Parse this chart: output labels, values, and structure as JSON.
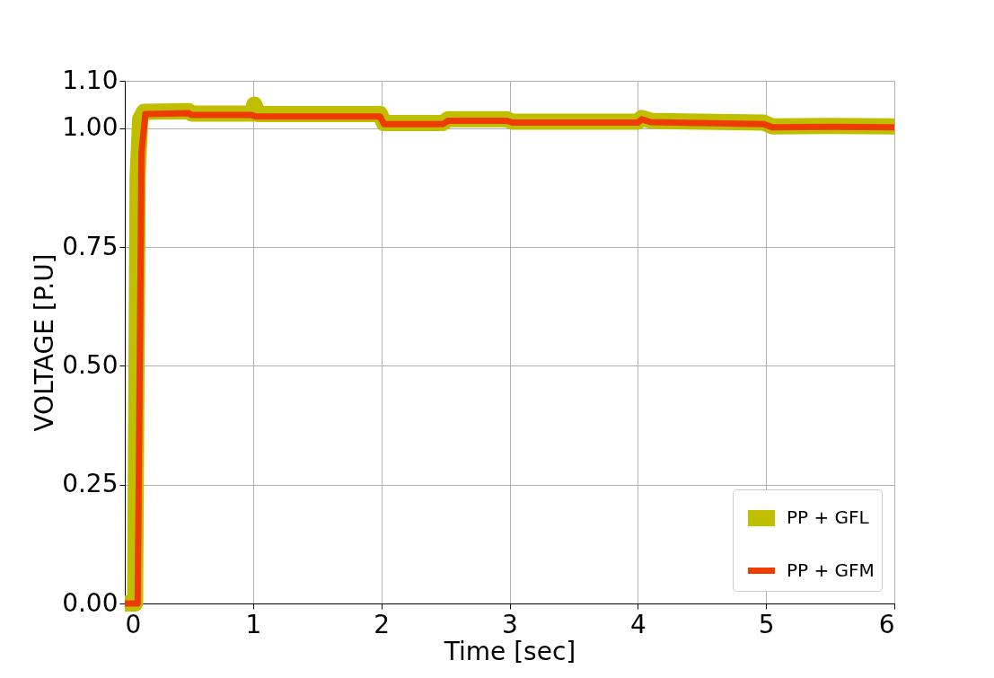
{
  "chart_data": {
    "type": "line",
    "xlabel": "Time [sec]",
    "ylabel": "VOLTAGE [P.U]",
    "xlim": [
      0,
      6
    ],
    "xticks": [
      0,
      1,
      2,
      3,
      4,
      5,
      6
    ],
    "ylim": [
      0,
      1.1
    ],
    "yticks": [
      {
        "value": 0,
        "label": "0.00"
      },
      {
        "value": 0.25,
        "label": "0.25"
      },
      {
        "value": 0.5,
        "label": "0.50"
      },
      {
        "value": 0.75,
        "label": "0.75"
      },
      {
        "value": 1.0,
        "label": "1.00"
      },
      {
        "value": 1.1,
        "label": "1.10"
      }
    ],
    "grid": true,
    "legend": "bottom right",
    "line_style": "solid",
    "series": [
      {
        "name": "PP + GFL",
        "color": "#bfbf00",
        "x": [
          0,
          0.08,
          0.1,
          0.12,
          0.15,
          0.5,
          0.52,
          0.99,
          1.01,
          1.04,
          1.99,
          2.02,
          2.48,
          2.52,
          2.98,
          3.02,
          4.0,
          4.03,
          4.1,
          4.5,
          4.98,
          5.05,
          5.5,
          6
        ],
        "values": [
          0,
          0,
          0.9,
          1.02,
          1.035,
          1.036,
          1.031,
          1.031,
          1.05,
          1.03,
          1.03,
          1.011,
          1.011,
          1.019,
          1.019,
          1.014,
          1.014,
          1.022,
          1.016,
          1.014,
          1.012,
          1.004,
          1.005,
          1.004
        ]
      },
      {
        "name": "PP + GFM",
        "color": "#ee3b00",
        "x": [
          0,
          0.1,
          0.11,
          0.13,
          0.16,
          0.5,
          0.52,
          0.99,
          1.02,
          1.99,
          2.02,
          2.48,
          2.52,
          2.98,
          3.02,
          4.0,
          4.03,
          4.1,
          4.5,
          4.98,
          5.05,
          5.5,
          6
        ],
        "values": [
          0,
          0,
          0.3,
          0.95,
          1.03,
          1.032,
          1.028,
          1.028,
          1.025,
          1.025,
          1.009,
          1.009,
          1.016,
          1.016,
          1.012,
          1.012,
          1.019,
          1.013,
          1.011,
          1.009,
          1.002,
          1.003,
          1.002
        ]
      }
    ]
  }
}
